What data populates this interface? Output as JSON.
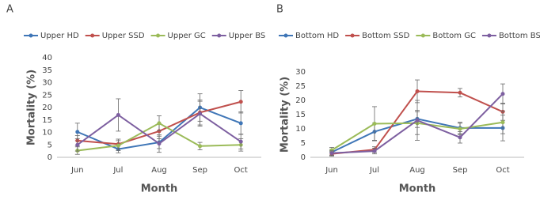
{
  "chart_data": [
    {
      "type": "line",
      "panel_label": "A",
      "y_label": "Mortality (%)",
      "x_label": "Month",
      "categories": [
        "Jun",
        "Jul",
        "Aug",
        "Sep",
        "Oct"
      ],
      "ylim": [
        0,
        40
      ],
      "yticks": [
        0,
        5,
        10,
        15,
        20,
        25,
        30,
        35,
        40
      ],
      "series": [
        {
          "name": "Upper HD",
          "color": "#3f76b7",
          "values": [
            10.2,
            3.3,
            6,
            20,
            13.7
          ],
          "errors": [
            3.5,
            1.5,
            2.5,
            5.5,
            4.5
          ]
        },
        {
          "name": "Upper SSD",
          "color": "#c0504d",
          "values": [
            6.7,
            5.3,
            10.5,
            18,
            22.3
          ],
          "errors": [
            2,
            2,
            3,
            5,
            4.5
          ]
        },
        {
          "name": "Upper GC",
          "color": "#9bbb59",
          "values": [
            2.7,
            4.7,
            13.7,
            4.5,
            5
          ],
          "errors": [
            1.5,
            2,
            3,
            1.5,
            2.5
          ]
        },
        {
          "name": "Upper BS",
          "color": "#7d5fa0",
          "values": [
            5,
            17,
            5.5,
            17.5,
            6.3
          ],
          "errors": [
            2.5,
            6.5,
            3.5,
            5,
            3
          ]
        }
      ]
    },
    {
      "type": "line",
      "panel_label": "B",
      "y_label": "Mortality (%)",
      "x_label": "Month",
      "categories": [
        "Jun",
        "Jul",
        "Aug",
        "Sep",
        "Oct"
      ],
      "ylim": [
        0,
        30
      ],
      "yticks": [
        0,
        5,
        10,
        15,
        20,
        25,
        30
      ],
      "series": [
        {
          "name": "Bottom HD",
          "color": "#3f76b7",
          "values": [
            1.8,
            9,
            13.5,
            10.3,
            10.3
          ],
          "errors": [
            1,
            3,
            3,
            2,
            4.5
          ]
        },
        {
          "name": "Bottom SSD",
          "color": "#c0504d",
          "values": [
            1.2,
            2.7,
            23.2,
            22.7,
            16
          ],
          "errors": [
            0.8,
            1,
            4,
            1.5,
            3
          ]
        },
        {
          "name": "Bottom GC",
          "color": "#9bbb59",
          "values": [
            2.5,
            11.8,
            12,
            10,
            12.3
          ],
          "errors": [
            1,
            6,
            4,
            2,
            4
          ]
        },
        {
          "name": "Bottom BS",
          "color": "#7d5fa0",
          "values": [
            1.5,
            2.2,
            13,
            7,
            22.3
          ],
          "errors": [
            0.8,
            1,
            7,
            2,
            3.5
          ]
        }
      ]
    }
  ]
}
